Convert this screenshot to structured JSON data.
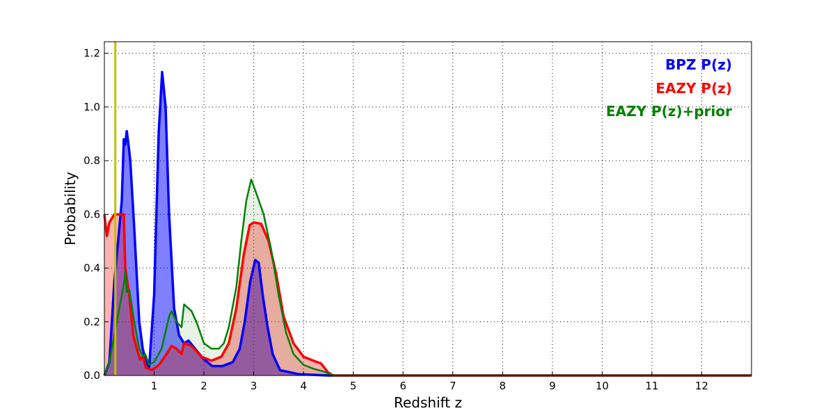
{
  "chart_data": {
    "type": "area",
    "title": "",
    "xlabel": "Redshift z",
    "ylabel": "Probability",
    "xlim": [
      0,
      13
    ],
    "ylim": [
      0,
      1.243
    ],
    "xticks": [
      1,
      2,
      3,
      4,
      5,
      6,
      7,
      8,
      9,
      10,
      11,
      12
    ],
    "yticks": [
      0.0,
      0.2,
      0.4,
      0.6,
      0.8,
      1.0,
      1.2
    ],
    "ytick_labels": [
      "0.0",
      "0.2",
      "0.4",
      "0.6",
      "0.8",
      "1.0",
      "1.2"
    ],
    "grid": true,
    "legend_position": "top-right",
    "vline": {
      "x": 0.22,
      "color": "#bfbf00"
    },
    "series": [
      {
        "name": "BPZ P(z)",
        "color": "#0000ff",
        "fill_opacity": 0.5,
        "x": [
          0,
          0.1,
          0.2,
          0.3,
          0.35,
          0.39,
          0.42,
          0.45,
          0.49,
          0.52,
          0.6,
          0.7,
          0.77,
          0.84,
          0.9,
          1.0,
          1.09,
          1.16,
          1.23,
          1.3,
          1.4,
          1.5,
          1.6,
          1.69,
          1.82,
          2.0,
          2.17,
          2.37,
          2.58,
          2.72,
          2.82,
          2.93,
          3.03,
          3.1,
          3.18,
          3.28,
          3.38,
          3.53,
          3.9,
          4.5,
          13
        ],
        "y": [
          0,
          0.05,
          0.35,
          0.55,
          0.65,
          0.88,
          0.86,
          0.91,
          0.85,
          0.8,
          0.55,
          0.2,
          0.1,
          0.05,
          0.03,
          0.3,
          0.9,
          1.13,
          1.0,
          0.6,
          0.25,
          0.15,
          0.12,
          0.13,
          0.1,
          0.06,
          0.035,
          0.035,
          0.05,
          0.1,
          0.2,
          0.35,
          0.43,
          0.42,
          0.3,
          0.18,
          0.08,
          0.02,
          0.005,
          0,
          0
        ]
      },
      {
        "name": "EAZY P(z)",
        "color": "#ff0000",
        "fill_opacity": 0.3,
        "x": [
          0,
          0.05,
          0.1,
          0.2,
          0.3,
          0.39,
          0.42,
          0.5,
          0.58,
          0.65,
          0.72,
          0.78,
          0.83,
          0.95,
          1.1,
          1.25,
          1.35,
          1.45,
          1.55,
          1.6,
          1.75,
          1.95,
          2.15,
          2.35,
          2.5,
          2.65,
          2.8,
          2.92,
          3.0,
          3.15,
          3.3,
          3.45,
          3.6,
          3.8,
          4.0,
          4.2,
          4.35,
          4.5,
          4.6,
          13
        ],
        "y": [
          0.6,
          0.52,
          0.57,
          0.6,
          0.6,
          0.6,
          0.4,
          0.3,
          0.15,
          0.1,
          0.06,
          0.07,
          0.03,
          0.02,
          0.04,
          0.08,
          0.11,
          0.1,
          0.08,
          0.12,
          0.11,
          0.07,
          0.055,
          0.07,
          0.12,
          0.25,
          0.45,
          0.56,
          0.57,
          0.565,
          0.5,
          0.38,
          0.22,
          0.12,
          0.07,
          0.055,
          0.045,
          0.01,
          0,
          0
        ]
      },
      {
        "name": "EAZY P(z)+prior",
        "color": "#008000",
        "fill_opacity": 0.1,
        "x": [
          0,
          0.1,
          0.2,
          0.3,
          0.4,
          0.42,
          0.45,
          0.5,
          0.6,
          0.7,
          0.78,
          0.82,
          0.9,
          1.0,
          1.15,
          1.3,
          1.35,
          1.45,
          1.55,
          1.6,
          1.75,
          1.85,
          2.0,
          2.15,
          2.3,
          2.4,
          2.5,
          2.65,
          2.75,
          2.85,
          2.95,
          3.05,
          3.2,
          3.35,
          3.5,
          3.65,
          3.8,
          4.0,
          4.2,
          4.4,
          4.6,
          13
        ],
        "y": [
          0,
          0.05,
          0.15,
          0.25,
          0.35,
          0.39,
          0.31,
          0.32,
          0.2,
          0.1,
          0.07,
          0.08,
          0.04,
          0.05,
          0.1,
          0.22,
          0.24,
          0.2,
          0.18,
          0.265,
          0.24,
          0.2,
          0.12,
          0.1,
          0.1,
          0.12,
          0.18,
          0.33,
          0.5,
          0.65,
          0.73,
          0.68,
          0.6,
          0.47,
          0.3,
          0.16,
          0.08,
          0.04,
          0.025,
          0.015,
          0,
          0
        ]
      }
    ]
  }
}
